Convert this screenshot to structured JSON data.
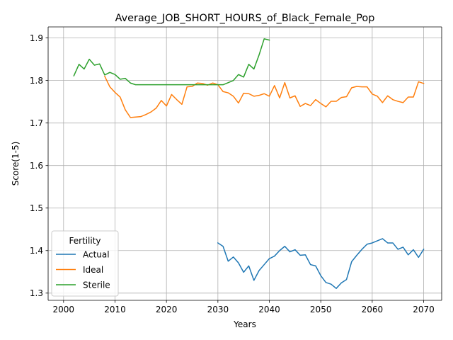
{
  "chart_data": {
    "type": "line",
    "title": "Average_JOB_SHORT_HOURS_of_Black_Female_Pop",
    "xlabel": "Years",
    "ylabel": "Score(1-5)",
    "xlim": [
      1997,
      2073.5
    ],
    "ylim": [
      1.283,
      1.926
    ],
    "xticks": [
      2000,
      2010,
      2020,
      2030,
      2040,
      2050,
      2060,
      2070
    ],
    "yticks": [
      1.3,
      1.4,
      1.5,
      1.6,
      1.7,
      1.8,
      1.9
    ],
    "ytick_labels": [
      "1.3",
      "1.4",
      "1.5",
      "1.6",
      "1.7",
      "1.8",
      "1.9"
    ],
    "grid": true,
    "legend": {
      "title": "Fertility",
      "placement": "lower-left"
    },
    "series": [
      {
        "name": "Actual",
        "color": "#1f77b4",
        "x": [
          2030,
          2031,
          2032,
          2033,
          2034,
          2035,
          2036,
          2037,
          2038,
          2039,
          2040,
          2041,
          2042,
          2043,
          2044,
          2045,
          2046,
          2047,
          2048,
          2049,
          2050,
          2051,
          2052,
          2053,
          2054,
          2055,
          2056,
          2057,
          2058,
          2059,
          2060,
          2061,
          2062,
          2063,
          2064,
          2065,
          2066,
          2067,
          2068,
          2069,
          2070
        ],
        "y": [
          1.418,
          1.41,
          1.375,
          1.385,
          1.371,
          1.349,
          1.364,
          1.33,
          1.353,
          1.367,
          1.381,
          1.387,
          1.4,
          1.41,
          1.397,
          1.402,
          1.389,
          1.39,
          1.367,
          1.364,
          1.341,
          1.325,
          1.321,
          1.311,
          1.324,
          1.332,
          1.374,
          1.389,
          1.403,
          1.415,
          1.418,
          1.423,
          1.428,
          1.418,
          1.418,
          1.403,
          1.408,
          1.39,
          1.402,
          1.384,
          1.403
        ]
      },
      {
        "name": "Ideal",
        "color": "#ff7f0e",
        "x": [
          2008,
          2009,
          2010,
          2011,
          2012,
          2013,
          2014,
          2015,
          2016,
          2017,
          2018,
          2019,
          2020,
          2021,
          2022,
          2023,
          2024,
          2025,
          2026,
          2027,
          2028,
          2029,
          2030,
          2031,
          2032,
          2033,
          2034,
          2035,
          2036,
          2037,
          2038,
          2039,
          2040,
          2041,
          2042,
          2043,
          2044,
          2045,
          2046,
          2047,
          2048,
          2049,
          2050,
          2051,
          2052,
          2053,
          2054,
          2055,
          2056,
          2057,
          2058,
          2059,
          2060,
          2061,
          2062,
          2063,
          2064,
          2065,
          2066,
          2067,
          2068,
          2069,
          2070
        ],
        "y": [
          1.81,
          1.785,
          1.772,
          1.761,
          1.731,
          1.713,
          1.714,
          1.715,
          1.72,
          1.726,
          1.735,
          1.753,
          1.74,
          1.767,
          1.755,
          1.744,
          1.785,
          1.786,
          1.794,
          1.793,
          1.789,
          1.794,
          1.79,
          1.774,
          1.771,
          1.763,
          1.747,
          1.77,
          1.769,
          1.763,
          1.765,
          1.769,
          1.763,
          1.788,
          1.759,
          1.795,
          1.759,
          1.764,
          1.739,
          1.746,
          1.741,
          1.755,
          1.746,
          1.738,
          1.751,
          1.751,
          1.76,
          1.762,
          1.783,
          1.786,
          1.785,
          1.785,
          1.768,
          1.763,
          1.748,
          1.764,
          1.755,
          1.751,
          1.748,
          1.761,
          1.761,
          1.797,
          1.793
        ]
      },
      {
        "name": "Sterile",
        "color": "#2ca02c",
        "x": [
          2002,
          2003,
          2004,
          2005,
          2006,
          2007,
          2008,
          2009,
          2010,
          2011,
          2012,
          2013,
          2014,
          2015,
          2016,
          2017,
          2018,
          2019,
          2020,
          2021,
          2022,
          2023,
          2024,
          2025,
          2026,
          2027,
          2028,
          2029,
          2030,
          2031,
          2032,
          2033,
          2034,
          2035,
          2036,
          2037,
          2038,
          2039,
          2040
        ],
        "y": [
          1.811,
          1.838,
          1.827,
          1.85,
          1.836,
          1.839,
          1.813,
          1.819,
          1.814,
          1.803,
          1.805,
          1.794,
          1.79,
          1.79,
          1.79,
          1.79,
          1.79,
          1.79,
          1.79,
          1.79,
          1.79,
          1.79,
          1.79,
          1.79,
          1.79,
          1.79,
          1.79,
          1.79,
          1.79,
          1.79,
          1.795,
          1.8,
          1.814,
          1.808,
          1.838,
          1.827,
          1.86,
          1.898,
          1.895
        ]
      }
    ]
  }
}
